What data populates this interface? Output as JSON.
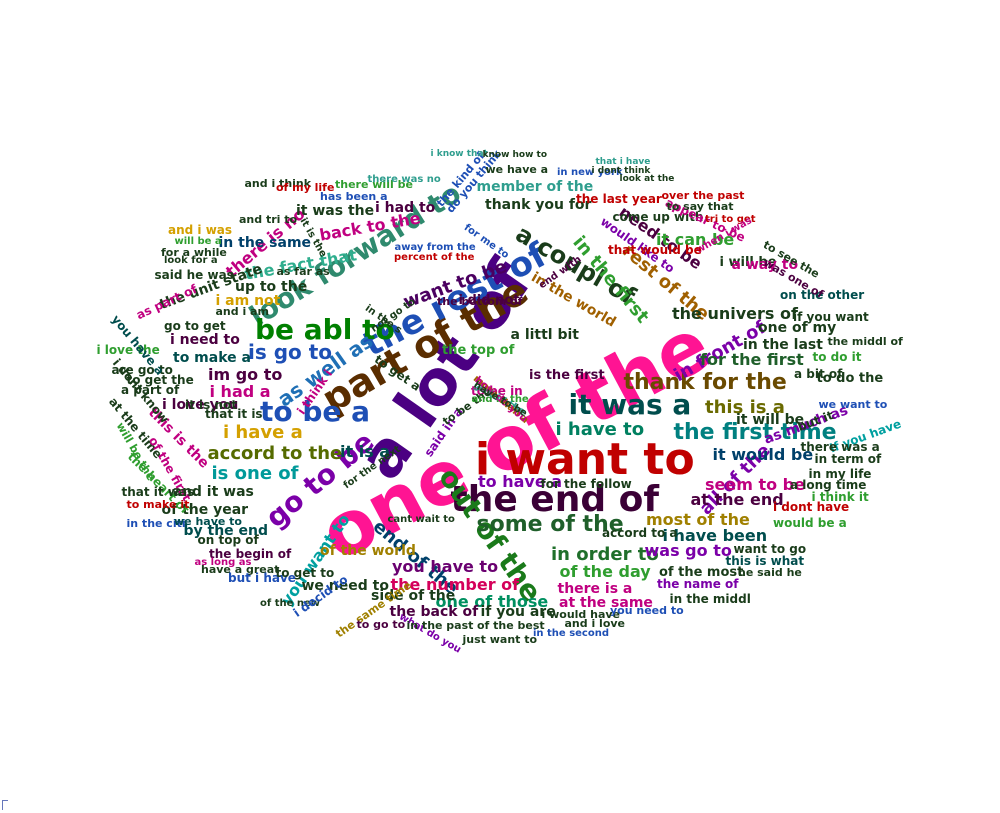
{
  "words": [
    {
      "text": "one of the",
      "color": "#ff1493",
      "rot": -28
    },
    {
      "text": "a lot of",
      "color": "#4b0082",
      "rot": -55
    },
    {
      "text": "i want to",
      "color": "#c00000",
      "rot": 0
    },
    {
      "text": "the end of",
      "color": "#3b0036",
      "rot": 0
    },
    {
      "text": "part of the",
      "color": "#5a2d00",
      "rot": -30
    },
    {
      "text": "the rest of",
      "color": "#1e4fb5",
      "rot": -28
    },
    {
      "text": "look forward to",
      "color": "#2f8a6e",
      "rot": -32
    },
    {
      "text": "be abl to",
      "color": "#008000",
      "rot": 0
    },
    {
      "text": "it was a",
      "color": "#004d4d",
      "rot": 0
    },
    {
      "text": "to be a",
      "color": "#1e4fb5",
      "rot": 0
    },
    {
      "text": "go to be",
      "color": "#7b00a8",
      "rot": -40
    },
    {
      "text": "out of the",
      "color": "#1a7a1a",
      "rot": 55
    },
    {
      "text": "a coupl of",
      "color": "#1a3c1a",
      "rot": 30
    },
    {
      "text": "thank for the",
      "color": "#6a4a00",
      "rot": 0
    },
    {
      "text": "some of the",
      "color": "#1f5f2a",
      "rot": 0
    },
    {
      "text": "the first time",
      "color": "#008080",
      "rot": 0
    },
    {
      "text": "as well as",
      "color": "#1f6fb5",
      "rot": -35
    },
    {
      "text": "is go to",
      "color": "#1e4fb5",
      "rot": 0
    },
    {
      "text": "in front of",
      "color": "#7b00a8",
      "rot": -30
    },
    {
      "text": "in order to",
      "color": "#1f6f2a",
      "rot": 0
    },
    {
      "text": "accord to the",
      "color": "#556b00",
      "rot": 0
    },
    {
      "text": "i have a",
      "color": "#d4a000",
      "rot": 0
    },
    {
      "text": "is one of",
      "color": "#009999",
      "rot": 0
    },
    {
      "text": "want to be",
      "color": "#4b0060",
      "rot": -20
    },
    {
      "text": "i have to",
      "color": "#008060",
      "rot": 0
    },
    {
      "text": "this is a",
      "color": "#6a6a00",
      "rot": 0
    },
    {
      "text": "all of the",
      "color": "#7b00a8",
      "rot": -45
    },
    {
      "text": "end of the",
      "color": "#00406a",
      "rot": 40
    },
    {
      "text": "in the first",
      "color": "#2f9e2f",
      "rot": 50
    },
    {
      "text": "rest of the",
      "color": "#a06000",
      "rot": 40
    },
    {
      "text": "back to the",
      "color": "#c00080",
      "rot": -10
    },
    {
      "text": "the fact that",
      "color": "#2fae8e",
      "rot": -10
    },
    {
      "text": "there is no",
      "color": "#c00080",
      "rot": -40
    },
    {
      "text": "im go to",
      "color": "#4b0040",
      "rot": 0
    },
    {
      "text": "i had a",
      "color": "#c00080",
      "rot": 0
    },
    {
      "text": "you have to",
      "color": "#6a0070",
      "rot": 0
    },
    {
      "text": "you want to",
      "color": "#00a0a0",
      "rot": -55
    },
    {
      "text": "most of the",
      "color": "#a08000",
      "rot": 0
    },
    {
      "text": "it is a",
      "color": "#004d4d",
      "rot": 0
    },
    {
      "text": "the number of",
      "color": "#d4005a",
      "rot": 0
    },
    {
      "text": "one of those",
      "color": "#009060",
      "rot": 0
    },
    {
      "text": "of the day",
      "color": "#2f9e2f",
      "rot": 0
    },
    {
      "text": "was go to",
      "color": "#7b00a8",
      "rot": 0
    },
    {
      "text": "i have been",
      "color": "#004d4d",
      "rot": 0
    },
    {
      "text": "at the end",
      "color": "#4b0040",
      "rot": 0
    },
    {
      "text": "seem to be",
      "color": "#c00080",
      "rot": 0
    },
    {
      "text": "it would be",
      "color": "#00406a",
      "rot": 0
    },
    {
      "text": "for the first",
      "color": "#1f5f2a",
      "rot": 0
    },
    {
      "text": "to have a",
      "color": "#7b00a8",
      "rot": 0
    },
    {
      "text": "need to be",
      "color": "#4b0040",
      "rot": 35
    },
    {
      "text": "thank you for",
      "color": "#1a3c1a",
      "rot": 0
    },
    {
      "text": "member of the",
      "color": "#2f9e8e",
      "rot": 0
    },
    {
      "text": "it was the",
      "color": "#1a3c1a",
      "rot": 0
    },
    {
      "text": "i had to",
      "color": "#4b0040",
      "rot": 0
    },
    {
      "text": "in the same",
      "color": "#00406a",
      "rot": 0
    },
    {
      "text": "the unit state",
      "color": "#1a3c1a",
      "rot": -20
    },
    {
      "text": "up to the",
      "color": "#1a3c1a",
      "rot": 0
    },
    {
      "text": "i am not",
      "color": "#d4a000",
      "rot": 0
    },
    {
      "text": "i need to",
      "color": "#4b0040",
      "rot": 0
    },
    {
      "text": "to make a",
      "color": "#004d4d",
      "rot": 0
    },
    {
      "text": "i love you",
      "color": "#4b0040",
      "rot": 0
    },
    {
      "text": "this is the",
      "color": "#c00080",
      "rot": 45
    },
    {
      "text": "and it was",
      "color": "#1a3c1a",
      "rot": 0
    },
    {
      "text": "of the year",
      "color": "#1a3c1a",
      "rot": 0
    },
    {
      "text": "by the end",
      "color": "#004d4d",
      "rot": 0
    },
    {
      "text": "of the world",
      "color": "#a08000",
      "rot": 0
    },
    {
      "text": "we need to",
      "color": "#1a3c1a",
      "rot": 0
    },
    {
      "text": "side of the",
      "color": "#1a3c1a",
      "rot": 0
    },
    {
      "text": "there is a",
      "color": "#c00080",
      "rot": 0
    },
    {
      "text": "at the same",
      "color": "#c00080",
      "rot": 0
    },
    {
      "text": "the back of",
      "color": "#4b0040",
      "rot": 0
    },
    {
      "text": "if you are",
      "color": "#1a3c1a",
      "rot": 0
    },
    {
      "text": "of the most",
      "color": "#1a3c1a",
      "rot": 0
    },
    {
      "text": "the name of",
      "color": "#7b00a8",
      "rot": 0
    },
    {
      "text": "in the middl",
      "color": "#1a3c1a",
      "rot": 0
    },
    {
      "text": "the univers of",
      "color": "#1a3c1a",
      "rot": 0
    },
    {
      "text": "one of my",
      "color": "#1a3c1a",
      "rot": 0
    },
    {
      "text": "in the last",
      "color": "#1a3c1a",
      "rot": 0
    },
    {
      "text": "it will be",
      "color": "#1a3c1a",
      "rot": 0
    },
    {
      "text": "as much as",
      "color": "#7b00a8",
      "rot": -20
    },
    {
      "text": "but it",
      "color": "#1a3c1a",
      "rot": -20
    },
    {
      "text": "i think it",
      "color": "#2f9e2f",
      "rot": 0
    },
    {
      "text": "i dont have",
      "color": "#c00000",
      "rot": 0
    },
    {
      "text": "would be a",
      "color": "#2f9e2f",
      "rot": 0
    },
    {
      "text": "want to go",
      "color": "#1a3c1a",
      "rot": 0
    },
    {
      "text": "this is what",
      "color": "#004d4d",
      "rot": 0
    },
    {
      "text": "he said he",
      "color": "#1a3c1a",
      "rot": 0
    },
    {
      "text": "accord to a",
      "color": "#1a3c1a",
      "rot": 0
    },
    {
      "text": "it can be",
      "color": "#2f9e2f",
      "rot": 0
    },
    {
      "text": "i will be",
      "color": "#1a3c1a",
      "rot": 0
    },
    {
      "text": "a way to",
      "color": "#c00080",
      "rot": 0
    },
    {
      "text": "would like to",
      "color": "#7b00a8",
      "rot": 35
    },
    {
      "text": "in the world",
      "color": "#a06000",
      "rot": 30
    },
    {
      "text": "i did not",
      "color": "#4b0040",
      "rot": 0
    },
    {
      "text": "to do it",
      "color": "#2f9e2f",
      "rot": 0
    },
    {
      "text": "a bit of",
      "color": "#1a3c1a",
      "rot": 0
    },
    {
      "text": "to do the",
      "color": "#1a3c1a",
      "rot": 0
    },
    {
      "text": "we want to",
      "color": "#1e4fb5",
      "rot": 0
    },
    {
      "text": "if you have",
      "color": "#00a0a0",
      "rot": -20
    },
    {
      "text": "there was a",
      "color": "#1a3c1a",
      "rot": 0
    },
    {
      "text": "in term of",
      "color": "#1a3c1a",
      "rot": 0
    },
    {
      "text": "in my life",
      "color": "#1a3c1a",
      "rot": 0
    },
    {
      "text": "a long time",
      "color": "#1a3c1a",
      "rot": 0
    },
    {
      "text": "if you want",
      "color": "#1a3c1a",
      "rot": 0
    },
    {
      "text": "on the other",
      "color": "#004d4d",
      "rot": 0
    },
    {
      "text": "the middl of",
      "color": "#1a3c1a",
      "rot": 0
    },
    {
      "text": "for the follow",
      "color": "#1a3c1a",
      "rot": 0
    },
    {
      "text": "a littl bit",
      "color": "#1a3c1a",
      "rot": 0
    },
    {
      "text": "is the first",
      "color": "#4b0040",
      "rot": 0
    },
    {
      "text": "the top of",
      "color": "#2f9e2f",
      "rot": 0
    },
    {
      "text": "to be in",
      "color": "#c00080",
      "rot": 0
    },
    {
      "text": "i think i",
      "color": "#c00080",
      "rot": -55
    },
    {
      "text": "said in a",
      "color": "#7b00a8",
      "rot": -55
    },
    {
      "text": "to get a",
      "color": "#1a3c1a",
      "rot": 35
    },
    {
      "text": "it is not",
      "color": "#1a3c1a",
      "rot": 0
    },
    {
      "text": "that it is",
      "color": "#1a3c1a",
      "rot": 0
    },
    {
      "text": "to get the",
      "color": "#1a3c1a",
      "rot": 0
    },
    {
      "text": "a part of",
      "color": "#1a3c1a",
      "rot": 0
    },
    {
      "text": "are go to",
      "color": "#1a3c1a",
      "rot": 0
    },
    {
      "text": "i love the",
      "color": "#2f9e2f",
      "rot": 0
    },
    {
      "text": "you have a",
      "color": "#004d4d",
      "rot": 50
    },
    {
      "text": "i dont know",
      "color": "#1a3c1a",
      "rot": 50
    },
    {
      "text": "at the time",
      "color": "#1a3c1a",
      "rot": 50
    },
    {
      "text": "will be the",
      "color": "#2f9e2f",
      "rot": 60
    },
    {
      "text": "of the first",
      "color": "#c00080",
      "rot": 60
    },
    {
      "text": "the heart of",
      "color": "#2f9e2f",
      "rot": 45
    },
    {
      "text": "that it was",
      "color": "#1a3c1a",
      "rot": 0
    },
    {
      "text": "to make it",
      "color": "#c00000",
      "rot": 0
    },
    {
      "text": "in the citi",
      "color": "#1e4fb5",
      "rot": 0
    },
    {
      "text": "we have to",
      "color": "#004d4d",
      "rot": 0
    },
    {
      "text": "on top of",
      "color": "#1a3c1a",
      "rot": 0
    },
    {
      "text": "the begin of",
      "color": "#4b0040",
      "rot": 0
    },
    {
      "text": "as long as",
      "color": "#c00080",
      "rot": 0
    },
    {
      "text": "have a great",
      "color": "#1a3c1a",
      "rot": 0
    },
    {
      "text": "but i have",
      "color": "#1e4fb5",
      "rot": 0
    },
    {
      "text": "to get to",
      "color": "#1a3c1a",
      "rot": 0
    },
    {
      "text": "of the new",
      "color": "#1a3c1a",
      "rot": 0
    },
    {
      "text": "i decid to",
      "color": "#1e4fb5",
      "rot": -35
    },
    {
      "text": "the same time",
      "color": "#a08000",
      "rot": -35
    },
    {
      "text": "to go to",
      "color": "#4b0040",
      "rot": 0
    },
    {
      "text": "what do you",
      "color": "#7b00a8",
      "rot": 30
    },
    {
      "text": "in the past",
      "color": "#1a3c1a",
      "rot": 0
    },
    {
      "text": "of the best",
      "color": "#1a3c1a",
      "rot": 0
    },
    {
      "text": "just want to",
      "color": "#1a3c1a",
      "rot": 0
    },
    {
      "text": "i would have",
      "color": "#1a3c1a",
      "rot": 0
    },
    {
      "text": "in the second",
      "color": "#1e4fb5",
      "rot": 0
    },
    {
      "text": "and i love",
      "color": "#1a3c1a",
      "rot": 0
    },
    {
      "text": "you need to",
      "color": "#1e4fb5",
      "rot": 0
    },
    {
      "text": "cant wait to",
      "color": "#1a3c1a",
      "rot": 0
    },
    {
      "text": "the bottom of",
      "color": "#4b0040",
      "rot": 0
    },
    {
      "text": "percent of the",
      "color": "#c00000",
      "rot": 0
    },
    {
      "text": "away from the",
      "color": "#1e4fb5",
      "rot": 0
    },
    {
      "text": "for me to",
      "color": "#1e4fb5",
      "rot": 35
    },
    {
      "text": "end with",
      "color": "#4b0040",
      "rot": -35
    },
    {
      "text": "to be the",
      "color": "#1a3c1a",
      "rot": -35
    },
    {
      "text": "for the next",
      "color": "#1a3c1a",
      "rot": -35
    },
    {
      "text": "not go to",
      "color": "#1a3c1a",
      "rot": -35
    },
    {
      "text": "in the s",
      "color": "#1a3c1a",
      "rot": 35
    },
    {
      "text": "as far as",
      "color": "#1a3c1a",
      "rot": 0
    },
    {
      "text": "it is the",
      "color": "#1a3c1a",
      "rot": 60
    },
    {
      "text": "and i am",
      "color": "#1a3c1a",
      "rot": 0
    },
    {
      "text": "as part of",
      "color": "#c00080",
      "rot": -25
    },
    {
      "text": "go to get",
      "color": "#1a3c1a",
      "rot": 0
    },
    {
      "text": "said he was",
      "color": "#1a3c1a",
      "rot": 0
    },
    {
      "text": "look for a",
      "color": "#1a3c1a",
      "rot": 0
    },
    {
      "text": "for a while",
      "color": "#1a3c1a",
      "rot": 0
    },
    {
      "text": "will be a",
      "color": "#2f9e2f",
      "rot": 0
    },
    {
      "text": "and i was",
      "color": "#d4a000",
      "rot": 0
    },
    {
      "text": "and tri to",
      "color": "#1a3c1a",
      "rot": 0
    },
    {
      "text": "and i think",
      "color": "#1a3c1a",
      "rot": 0
    },
    {
      "text": "of my life",
      "color": "#c00000",
      "rot": 0
    },
    {
      "text": "has been a",
      "color": "#1e4fb5",
      "rot": 0
    },
    {
      "text": "there will be",
      "color": "#2f9e2f",
      "rot": 0
    },
    {
      "text": "there was no",
      "color": "#2f9e8e",
      "rot": 0
    },
    {
      "text": "the kind of",
      "color": "#1e4fb5",
      "rot": -50
    },
    {
      "text": "do you think",
      "color": "#1e4fb5",
      "rot": -50
    },
    {
      "text": "we have a",
      "color": "#1a3c1a",
      "rot": 0
    },
    {
      "text": "i know that",
      "color": "#2f9e8e",
      "rot": 0
    },
    {
      "text": "know how to",
      "color": "#1a3c1a",
      "rot": 0
    },
    {
      "text": "in new york",
      "color": "#1e4fb5",
      "rot": 0
    },
    {
      "text": "that i have",
      "color": "#2f9e8e",
      "rot": 0
    },
    {
      "text": "i dont think",
      "color": "#1a3c1a",
      "rot": 0
    },
    {
      "text": "look at the",
      "color": "#1a3c1a",
      "rot": 0
    },
    {
      "text": "the last year",
      "color": "#c00000",
      "rot": 0
    },
    {
      "text": "come up with",
      "color": "#1a3c1a",
      "rot": 0
    },
    {
      "text": "appear to be",
      "color": "#c00080",
      "rot": 25
    },
    {
      "text": "over the past",
      "color": "#c00000",
      "rot": 0
    },
    {
      "text": "to say that",
      "color": "#1a3c1a",
      "rot": 0
    },
    {
      "text": "tri to get",
      "color": "#c00000",
      "rot": 0
    },
    {
      "text": "when i was",
      "color": "#c00080",
      "rot": -30
    },
    {
      "text": "to see the",
      "color": "#1a3c1a",
      "rot": 30
    },
    {
      "text": "was one of",
      "color": "#4b0040",
      "rot": 30
    },
    {
      "text": "that would be",
      "color": "#c00000",
      "rot": 0
    },
    {
      "text": "and in the",
      "color": "#2f9e2f",
      "rot": 0
    },
    {
      "text": "are in the",
      "color": "#2f9e8e",
      "rot": 30
    },
    {
      "text": "go to have",
      "color": "#2f9e8e",
      "rot": 30
    },
    {
      "text": "more than a",
      "color": "#a06000",
      "rot": 40
    },
    {
      "text": "how do you",
      "color": "#c00080",
      "rot": 40
    },
    {
      "text": "have to be",
      "color": "#1a3c1a",
      "rot": 30
    }
  ]
}
